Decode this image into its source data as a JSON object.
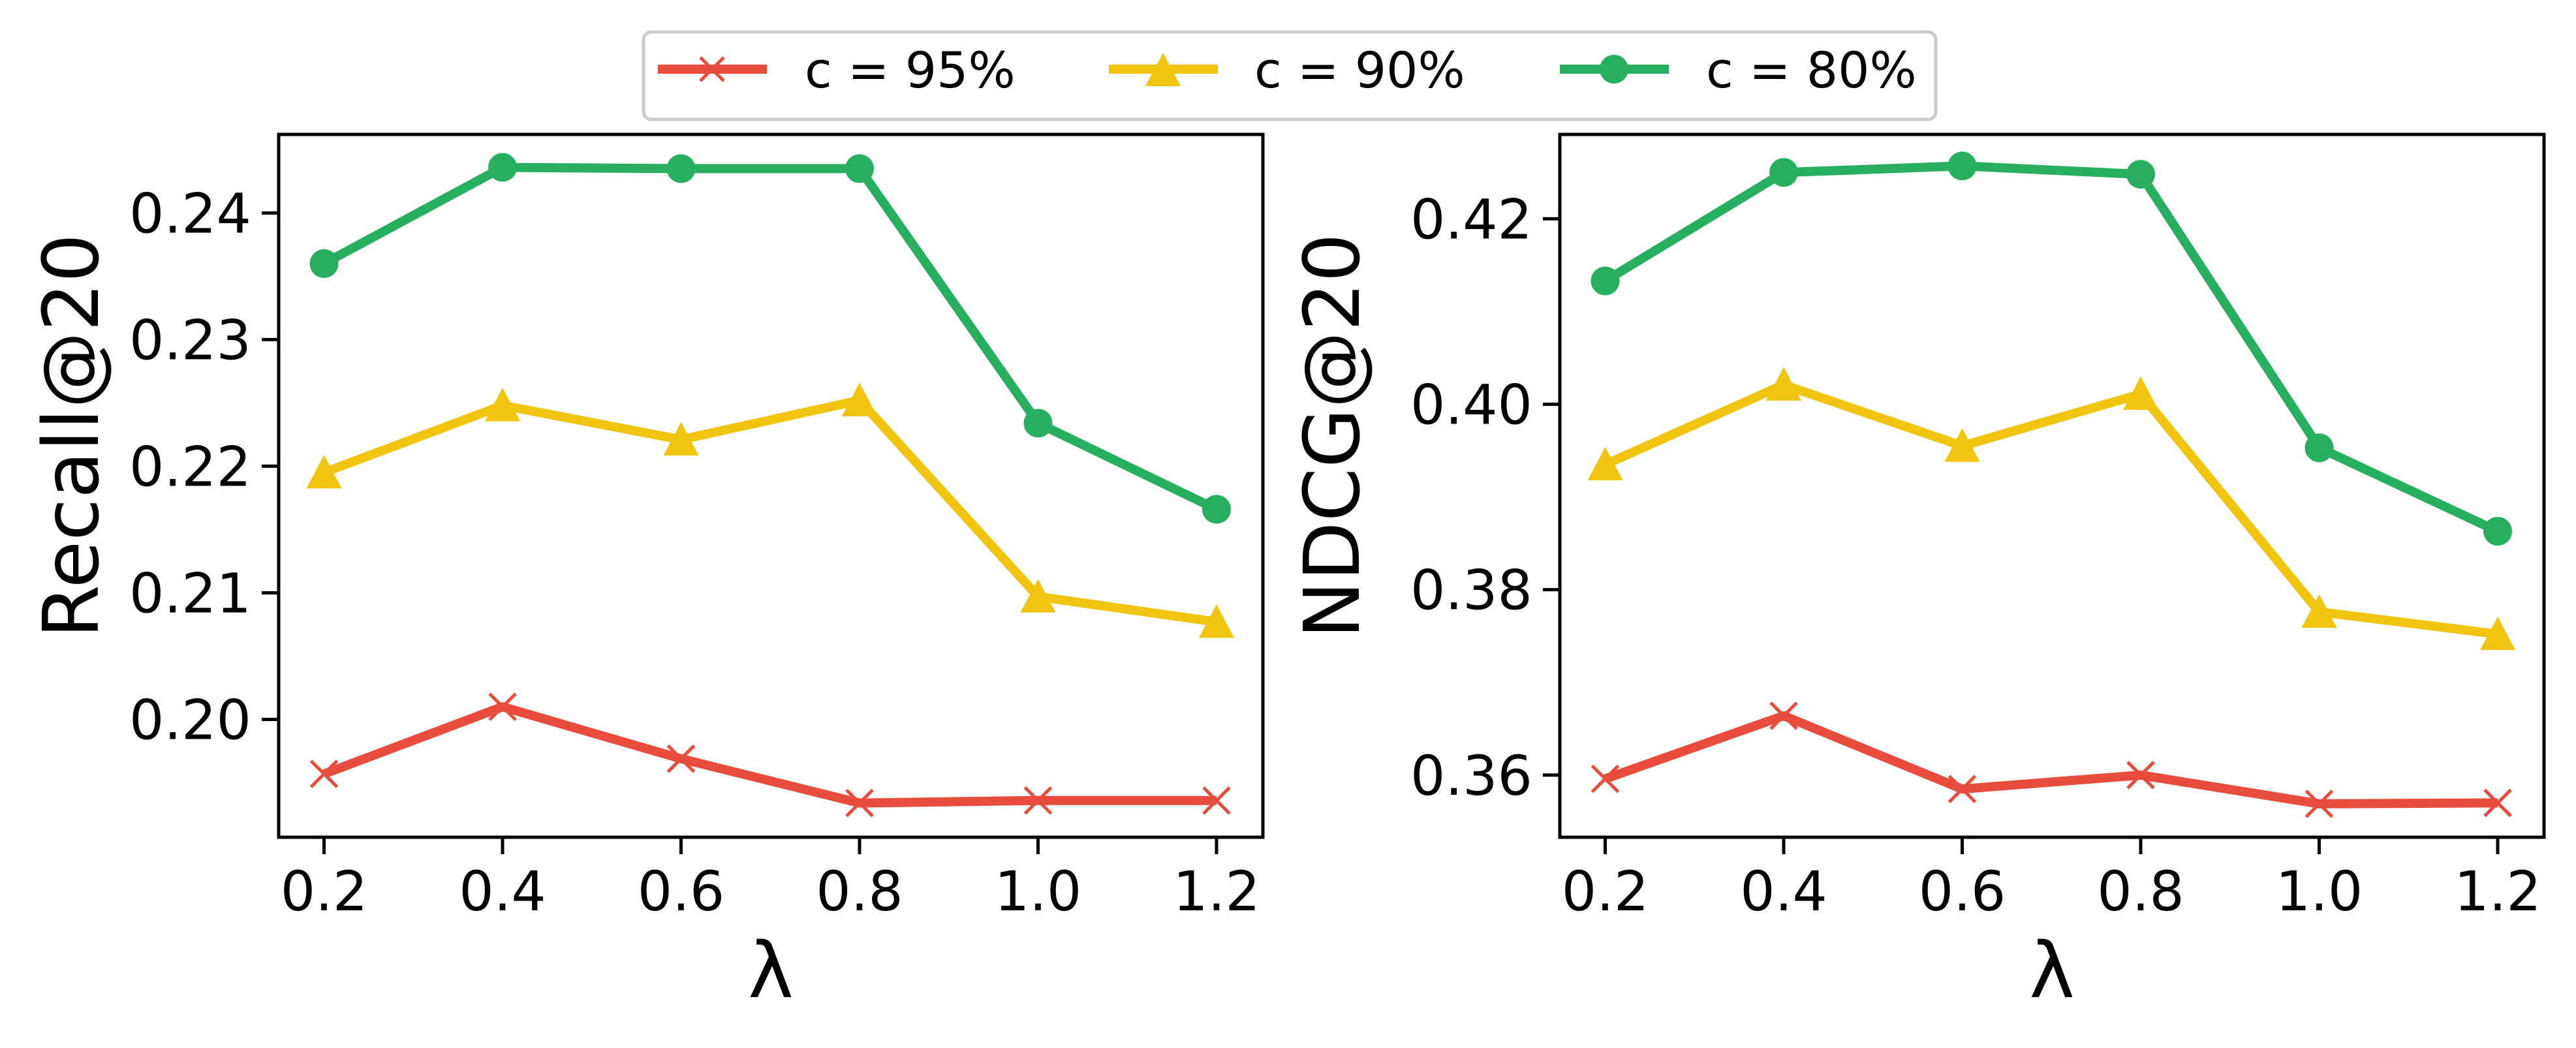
{
  "legend": {
    "position": "top-center, outside axes",
    "entries": [
      {
        "label": "c = 95%",
        "color": "#E74C3C",
        "marker": "x-icon"
      },
      {
        "label": "c = 90%",
        "color": "#F1C40F",
        "marker": "triangle-icon"
      },
      {
        "label": "c = 80%",
        "color": "#27AE60",
        "marker": "circle-icon"
      }
    ]
  },
  "chart_data": [
    {
      "type": "line",
      "title": "",
      "xlabel": "λ",
      "ylabel": "Recall@20",
      "x": [
        0.2,
        0.4,
        0.6,
        0.8,
        1.0,
        1.2
      ],
      "xticks": [
        "0.2",
        "0.4",
        "0.6",
        "0.8",
        "1.0",
        "1.2"
      ],
      "yticks": [
        "0.20",
        "0.21",
        "0.22",
        "0.23",
        "0.24"
      ],
      "ytick_values": [
        0.2,
        0.21,
        0.22,
        0.23,
        0.24
      ],
      "ylim": [
        0.1907,
        0.2462
      ],
      "grid": false,
      "series": [
        {
          "name": "c = 95%",
          "color": "#E74C3C",
          "marker": "x",
          "values": [
            0.1957,
            0.201,
            0.1969,
            0.1934,
            0.1936,
            0.1936
          ]
        },
        {
          "name": "c = 90%",
          "color": "#F1C40F",
          "marker": "triangle",
          "values": [
            0.2195,
            0.2248,
            0.2221,
            0.2252,
            0.2097,
            0.2077
          ]
        },
        {
          "name": "c = 80%",
          "color": "#27AE60",
          "marker": "circle",
          "values": [
            0.236,
            0.2436,
            0.2435,
            0.2435,
            0.2234,
            0.2166
          ]
        }
      ]
    },
    {
      "type": "line",
      "title": "",
      "xlabel": "λ",
      "ylabel": "NDCG@20",
      "x": [
        0.2,
        0.4,
        0.6,
        0.8,
        1.0,
        1.2
      ],
      "xticks": [
        "0.2",
        "0.4",
        "0.6",
        "0.8",
        "1.0",
        "1.2"
      ],
      "yticks": [
        "0.36",
        "0.38",
        "0.40",
        "0.42"
      ],
      "ytick_values": [
        0.36,
        0.38,
        0.4,
        0.42
      ],
      "ylim": [
        0.3533,
        0.4291
      ],
      "grid": false,
      "series": [
        {
          "name": "c = 95%",
          "color": "#E74C3C",
          "marker": "x",
          "values": [
            0.3596,
            0.3664,
            0.3585,
            0.36,
            0.3569,
            0.357
          ]
        },
        {
          "name": "c = 90%",
          "color": "#F1C40F",
          "marker": "triangle",
          "values": [
            0.3935,
            0.4021,
            0.3955,
            0.4011,
            0.3776,
            0.3752
          ]
        },
        {
          "name": "c = 80%",
          "color": "#27AE60",
          "marker": "circle",
          "values": [
            0.4133,
            0.425,
            0.4257,
            0.4248,
            0.3953,
            0.3863
          ]
        }
      ]
    }
  ]
}
